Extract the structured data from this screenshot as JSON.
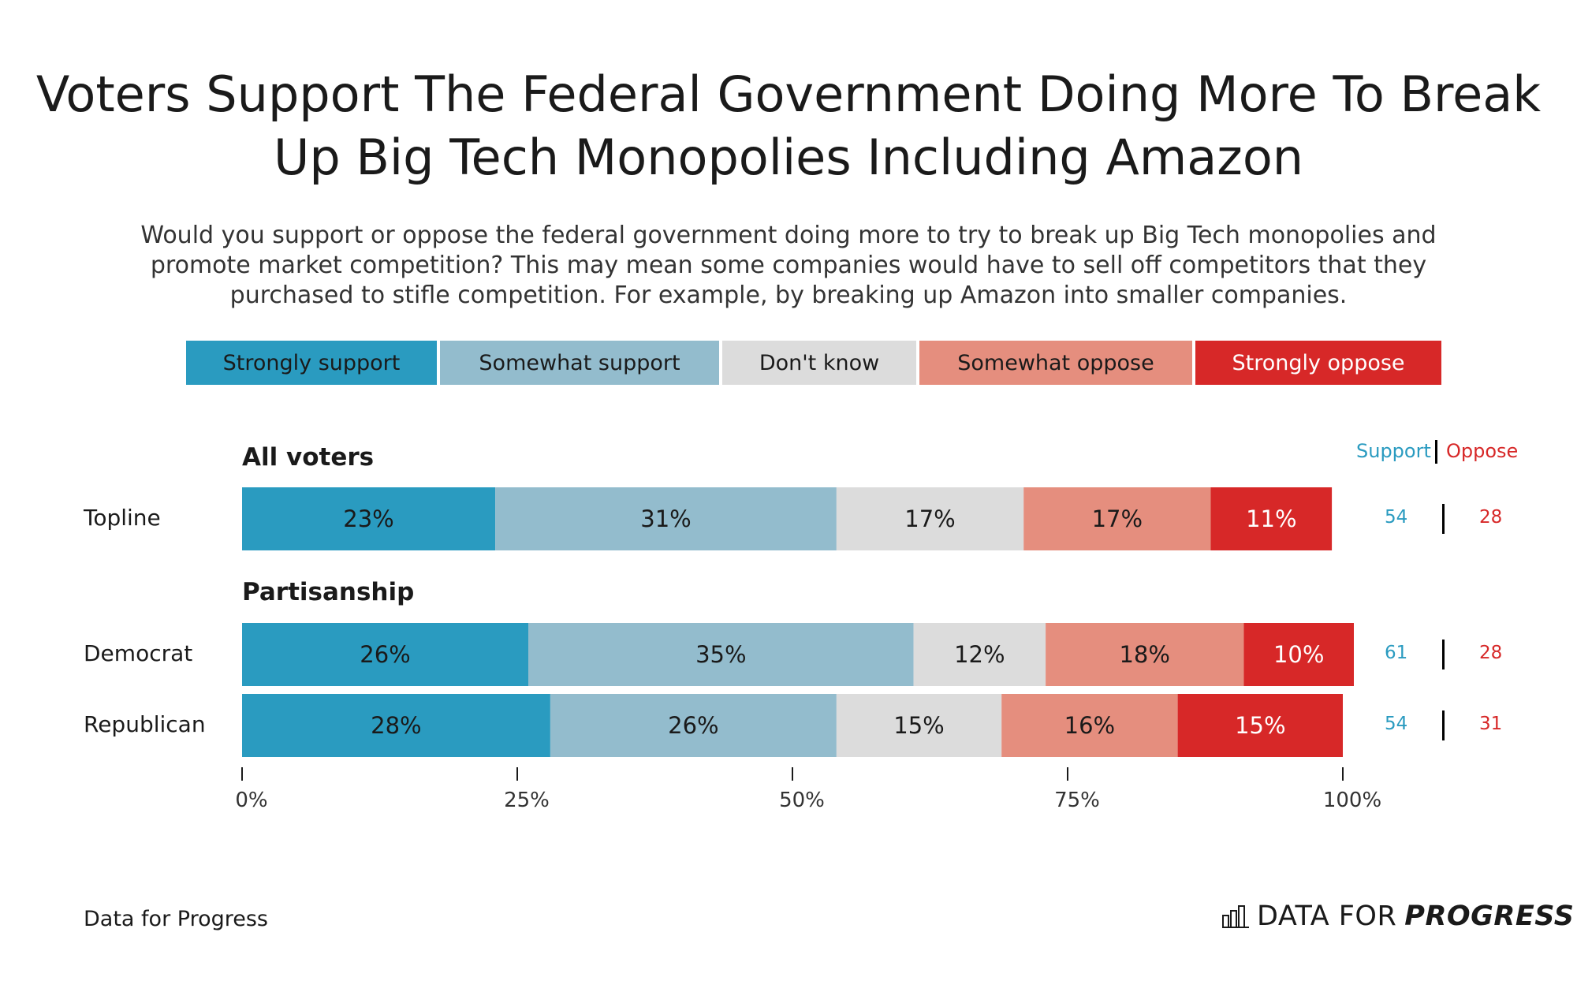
{
  "chart_data": {
    "type": "bar",
    "orientation": "horizontal",
    "stacked": true,
    "title": "Voters Support The Federal Government Doing More To Break Up Big Tech Monopolies Including Amazon",
    "subtitle": "Would you support or oppose the federal government doing more to try to break up Big Tech monopolies and promote market competition? This may mean some companies would have to sell off competitors that they purchased to stifle competition. For example, by breaking up Amazon into smaller companies.",
    "legend": [
      "Strongly support",
      "Somewhat support",
      "Don't know",
      "Somewhat oppose",
      "Strongly oppose"
    ],
    "legend_placement": "top",
    "colors": [
      "#2a9bc0",
      "#93bccd",
      "#dcdcdc",
      "#e58e7e",
      "#d72828"
    ],
    "legend_text_colors": [
      "#1a1a1a",
      "#1a1a1a",
      "#1a1a1a",
      "#1a1a1a",
      "#ffffff"
    ],
    "groups": [
      {
        "label": "All voters",
        "rows": [
          {
            "label": "Topline",
            "values": [
              23,
              31,
              17,
              17,
              11
            ],
            "support": "54",
            "oppose": "28"
          }
        ]
      },
      {
        "label": "Partisanship",
        "rows": [
          {
            "label": "Democrat",
            "values": [
              26,
              35,
              12,
              18,
              10
            ],
            "support": "61",
            "oppose": "28"
          },
          {
            "label": "Republican",
            "values": [
              28,
              26,
              15,
              16,
              15
            ],
            "support": "54",
            "oppose": "31"
          }
        ]
      }
    ],
    "x_ticks": [
      "0%",
      "25%",
      "50%",
      "75%",
      "100%"
    ],
    "xlim": [
      0,
      100
    ],
    "support_header": "Support",
    "oppose_header": "Oppose",
    "support_color": "#2a9bc0",
    "oppose_color": "#d72828"
  },
  "footer": {
    "source": "Data for Progress",
    "brand_light": "DATA FOR",
    "brand_bold": "PROGRESS"
  }
}
